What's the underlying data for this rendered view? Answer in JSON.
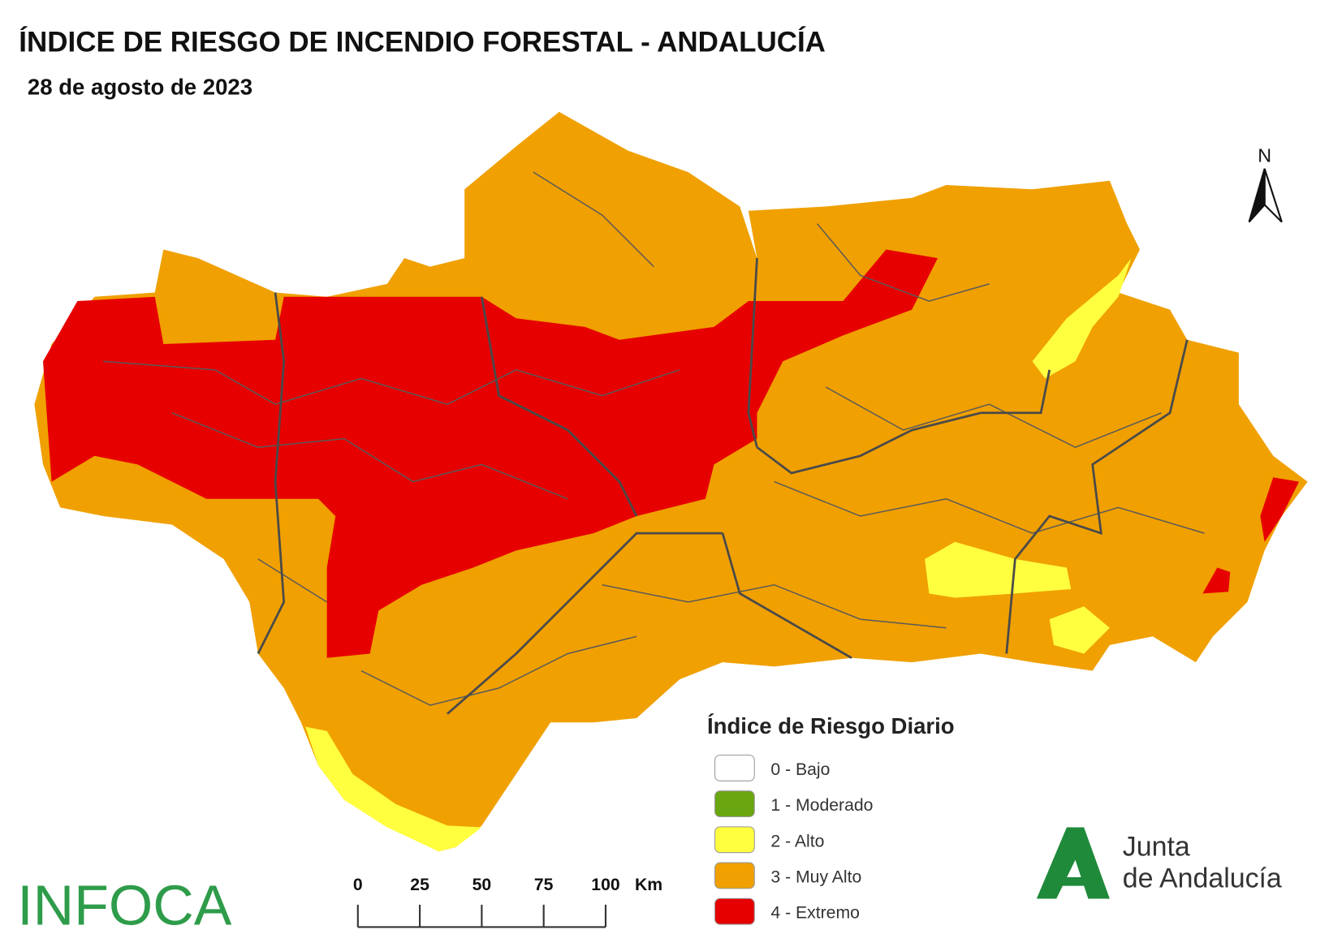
{
  "header": {
    "title": "ÍNDICE DE RIESGO DE INCENDIO FORESTAL - ANDALUCÍA",
    "date": "28 de agosto de 2023"
  },
  "north": "N",
  "legend": {
    "title": "Índice de Riesgo Diario",
    "items": [
      {
        "label": "0 - Bajo",
        "color": "#ffffff"
      },
      {
        "label": "1 - Moderado",
        "color": "#6aa60f"
      },
      {
        "label": "2 - Alto",
        "color": "#ffff40"
      },
      {
        "label": "3 - Muy Alto",
        "color": "#f0a000"
      },
      {
        "label": "4 - Extremo",
        "color": "#e60000"
      }
    ]
  },
  "scale_bar": {
    "ticks": [
      0,
      25,
      50,
      75,
      100
    ],
    "unit": "Km"
  },
  "logos": {
    "infoca": "INFOCA",
    "junta": [
      "Junta",
      "de Andalucía"
    ]
  }
}
